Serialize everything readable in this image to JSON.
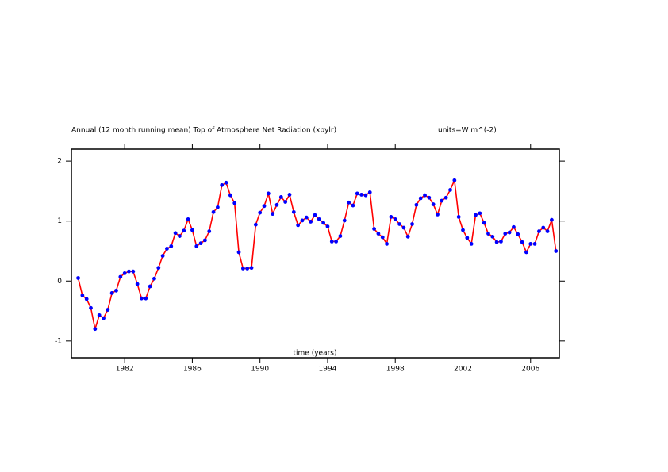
{
  "chart_data": {
    "type": "line",
    "title": "Annual (12 month running mean) Top of Atmosphere Net Radiation (xbylr)",
    "units": "units=W m^(-2)",
    "xlabel": "time (years)",
    "xlim": [
      1978.85,
      2007.7
    ],
    "xticks": [
      1982,
      1986,
      1990,
      1994,
      1998,
      2002,
      2006
    ],
    "ylim": [
      -1.28,
      2.2
    ],
    "yticks": [
      -1,
      0,
      1,
      2
    ],
    "line_color": "#ff0000",
    "marker_color": "#0000ff",
    "x": [
      1979.25,
      1979.5,
      1979.75,
      1980,
      1980.25,
      1980.5,
      1980.75,
      1981,
      1981.25,
      1981.5,
      1981.75,
      1982,
      1982.25,
      1982.5,
      1982.75,
      1983,
      1983.25,
      1983.5,
      1983.75,
      1984,
      1984.25,
      1984.5,
      1984.75,
      1985,
      1985.25,
      1985.5,
      1985.75,
      1986,
      1986.25,
      1986.5,
      1986.75,
      1987,
      1987.25,
      1987.5,
      1987.75,
      1988,
      1988.25,
      1988.5,
      1988.75,
      1989,
      1989.25,
      1989.5,
      1989.75,
      1990,
      1990.25,
      1990.5,
      1990.75,
      1991,
      1991.25,
      1991.5,
      1991.75,
      1992,
      1992.25,
      1992.5,
      1992.75,
      1993,
      1993.25,
      1993.5,
      1993.75,
      1994,
      1994.25,
      1994.5,
      1994.75,
      1995,
      1995.25,
      1995.5,
      1995.75,
      1996,
      1996.25,
      1996.5,
      1996.75,
      1997,
      1997.25,
      1997.5,
      1997.75,
      1998,
      1998.25,
      1998.5,
      1998.75,
      1999,
      1999.25,
      1999.5,
      1999.75,
      2000,
      2000.25,
      2000.5,
      2000.75,
      2001,
      2001.25,
      2001.5,
      2001.75,
      2002,
      2002.25,
      2002.5,
      2002.75,
      2003,
      2003.25,
      2003.5,
      2003.75,
      2004,
      2004.25,
      2004.5,
      2004.75,
      2005,
      2005.25,
      2005.5,
      2005.75,
      2006,
      2006.25,
      2006.5,
      2006.75,
      2007,
      2007.25,
      2007.5
    ],
    "values": [
      0.05,
      -0.24,
      -0.3,
      -0.45,
      -0.8,
      -0.57,
      -0.62,
      -0.48,
      -0.2,
      -0.16,
      0.07,
      0.13,
      0.16,
      0.16,
      -0.05,
      -0.29,
      -0.29,
      -0.09,
      0.04,
      0.22,
      0.42,
      0.54,
      0.58,
      0.8,
      0.75,
      0.84,
      1.03,
      0.85,
      0.58,
      0.63,
      0.68,
      0.83,
      1.15,
      1.23,
      1.6,
      1.64,
      1.43,
      1.3,
      0.48,
      0.21,
      0.21,
      0.22,
      0.94,
      1.14,
      1.25,
      1.46,
      1.12,
      1.27,
      1.4,
      1.32,
      1.44,
      1.15,
      0.93,
      1.01,
      1.06,
      0.99,
      1.1,
      1.03,
      0.97,
      0.91,
      0.66,
      0.66,
      0.75,
      1.01,
      1.31,
      1.26,
      1.46,
      1.44,
      1.43,
      1.48,
      0.87,
      0.79,
      0.73,
      0.62,
      1.07,
      1.03,
      0.95,
      0.89,
      0.74,
      0.95,
      1.27,
      1.38,
      1.43,
      1.39,
      1.28,
      1.11,
      1.34,
      1.39,
      1.52,
      1.68,
      1.07,
      0.85,
      0.72,
      0.62,
      1.1,
      1.13,
      0.97,
      0.79,
      0.74,
      0.65,
      0.66,
      0.79,
      0.81,
      0.9,
      0.78,
      0.65,
      0.48,
      0.62,
      0.62,
      0.83,
      0.89,
      0.83,
      1.02,
      0.5
    ]
  }
}
